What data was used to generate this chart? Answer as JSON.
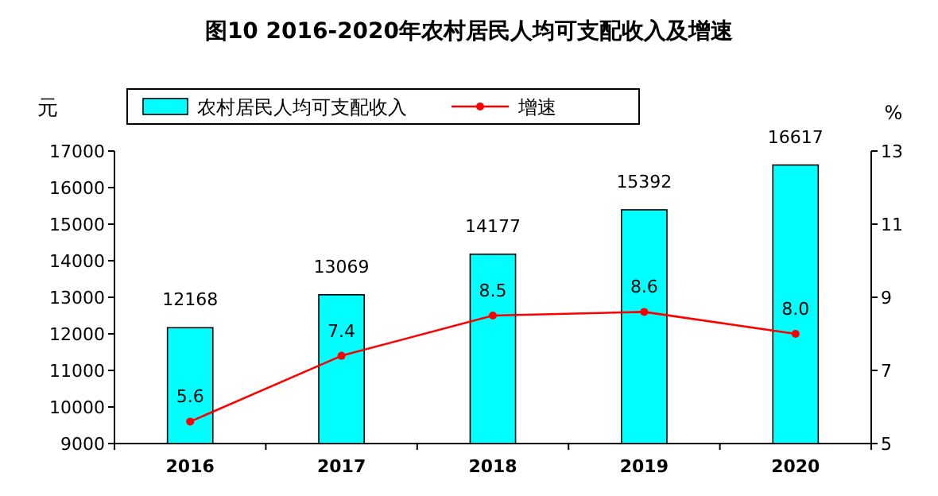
{
  "chart_data": {
    "type": "bar",
    "title": "图10  2016-2020年农村居民人均可支配收入及增速",
    "ylabel": "元",
    "y2label": "%",
    "categories": [
      "2016",
      "2017",
      "2018",
      "2019",
      "2020"
    ],
    "series": [
      {
        "name": "农村居民人均可支配收入",
        "color": "#00ffff",
        "values": [
          12168,
          13069,
          14177,
          15392,
          16617
        ]
      },
      {
        "name": "增速",
        "type": "line",
        "axis": "y2",
        "color": "#ff0000",
        "marker": "circle",
        "values": [
          5.6,
          7.4,
          8.5,
          8.6,
          8.0
        ],
        "value_labels": [
          "5.6",
          "7.4",
          "8.5",
          "8.6",
          "8.0"
        ]
      }
    ],
    "ylim": [
      9000,
      17000
    ],
    "yticks": [
      9000,
      10000,
      11000,
      12000,
      13000,
      14000,
      15000,
      16000,
      17000
    ],
    "y2lim": [
      5,
      13
    ],
    "y2ticks": [
      5,
      7,
      9,
      11,
      13
    ],
    "data_labels": true,
    "legend": "top",
    "grid": false
  }
}
